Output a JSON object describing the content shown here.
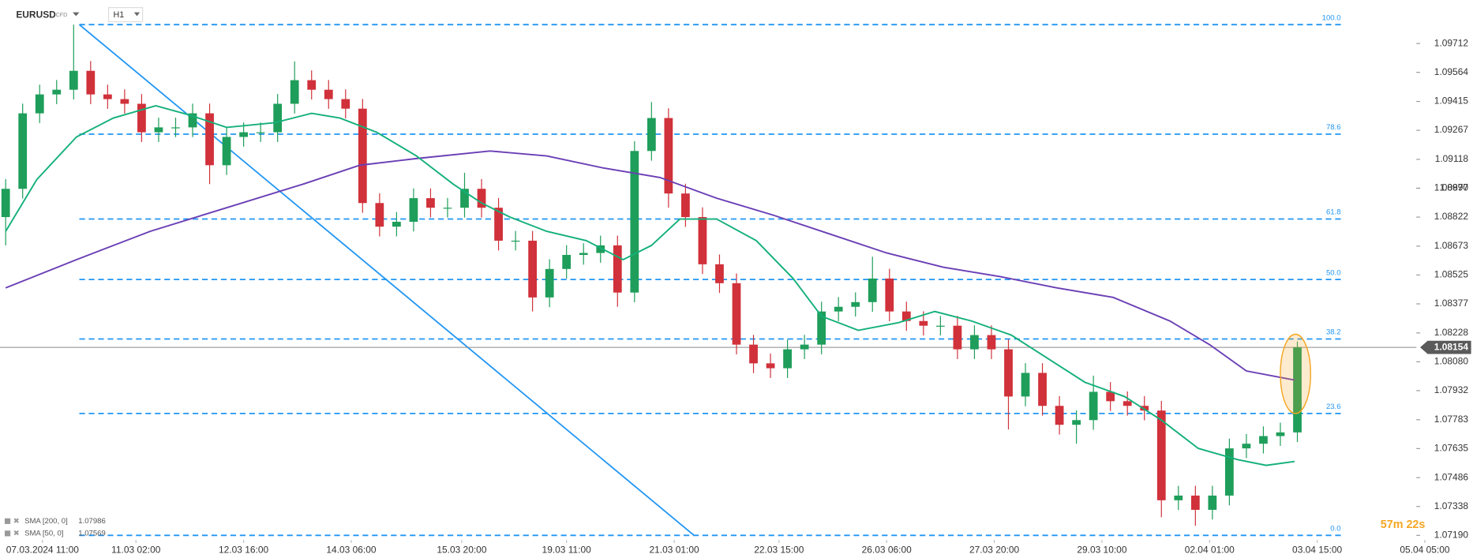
{
  "header": {
    "symbol": "EURUSD",
    "instrument": "CFD",
    "timeframe": "H1"
  },
  "chart_data": {
    "type": "candlestick",
    "x": [
      2,
      8,
      14,
      20,
      26,
      32,
      38,
      44,
      50,
      56,
      62,
      68,
      74,
      80,
      86,
      92,
      98,
      104,
      110,
      116,
      122,
      128,
      134,
      140,
      146,
      152,
      158,
      164,
      170,
      176,
      182,
      188,
      194,
      200,
      206,
      212,
      218,
      224,
      230,
      236,
      242,
      248,
      254,
      260,
      266,
      272,
      278,
      284,
      290,
      296,
      302,
      308,
      314,
      320,
      326,
      332,
      338,
      344,
      350,
      356,
      362,
      368,
      374,
      380,
      386,
      392,
      398,
      404,
      410,
      416,
      422,
      428,
      434,
      440,
      446,
      452,
      458
    ],
    "open": [
      1.08822,
      1.08967,
      1.09354,
      1.09451,
      1.09475,
      1.09572,
      1.09451,
      1.09427,
      1.09403,
      1.09257,
      1.09282,
      1.09282,
      1.09354,
      1.09088,
      1.09233,
      1.09257,
      1.09257,
      1.09403,
      1.09524,
      1.09475,
      1.09427,
      1.09378,
      1.08894,
      1.08773,
      1.08798,
      1.08919,
      1.0887,
      1.0887,
      1.08967,
      1.0887,
      1.08701,
      1.08701,
      1.0841,
      1.08556,
      1.08628,
      1.08638,
      1.08677,
      1.08435,
      1.09161,
      1.0933,
      1.08943,
      1.08822,
      1.0858,
      1.08483,
      1.08168,
      1.08072,
      1.08047,
      1.08144,
      1.08168,
      1.08338,
      1.08362,
      1.08386,
      1.08507,
      1.08338,
      1.08289,
      1.08265,
      1.08265,
      1.08144,
      1.08217,
      1.08144,
      1.07902,
      1.08023,
      1.07854,
      1.07757,
      1.07781,
      1.07926,
      1.07878,
      1.07854,
      1.0783,
      1.0737,
      1.07394,
      1.07321,
      1.07394,
      1.07636,
      1.0766,
      1.07699,
      1.07718
    ],
    "high": [
      1.09017,
      1.09404,
      1.09501,
      1.09525,
      1.09809,
      1.09622,
      1.09501,
      1.09477,
      1.09453,
      1.09332,
      1.09332,
      1.09404,
      1.09404,
      1.09283,
      1.09307,
      1.09307,
      1.09453,
      1.0962,
      1.09574,
      1.09525,
      1.09477,
      1.09428,
      1.08944,
      1.08848,
      1.08969,
      1.08969,
      1.0892,
      1.09049,
      1.09017,
      1.0892,
      1.08751,
      1.08751,
      1.08606,
      1.08678,
      1.08688,
      1.08727,
      1.08727,
      1.09211,
      1.09412,
      1.0938,
      1.08993,
      1.08872,
      1.0863,
      1.08533,
      1.08218,
      1.08122,
      1.08194,
      1.08218,
      1.08388,
      1.08412,
      1.08436,
      1.08619,
      1.08557,
      1.08388,
      1.08339,
      1.08315,
      1.08315,
      1.08267,
      1.08267,
      1.08194,
      1.08073,
      1.08073,
      1.07904,
      1.07831,
      1.08009,
      1.07976,
      1.07928,
      1.07904,
      1.0788,
      1.07444,
      1.07444,
      1.07444,
      1.07686,
      1.0771,
      1.07749,
      1.07768,
      1.08184
    ],
    "low": [
      1.08677,
      1.08917,
      1.09304,
      1.09401,
      1.09425,
      1.09401,
      1.09377,
      1.09353,
      1.09207,
      1.09207,
      1.09232,
      1.09232,
      1.08991,
      1.09038,
      1.09183,
      1.09207,
      1.09207,
      1.09353,
      1.09425,
      1.09377,
      1.09328,
      1.08844,
      1.08723,
      1.08723,
      1.08748,
      1.0882,
      1.0882,
      1.0882,
      1.0882,
      1.08651,
      1.08651,
      1.08338,
      1.0836,
      1.08506,
      1.08578,
      1.08588,
      1.08362,
      1.08385,
      1.09111,
      1.0887,
      1.08772,
      1.0853,
      1.08433,
      1.08118,
      1.08022,
      1.07997,
      1.07997,
      1.08094,
      1.08118,
      1.08288,
      1.08312,
      1.08336,
      1.08288,
      1.08239,
      1.08215,
      1.08215,
      1.08094,
      1.08094,
      1.08094,
      1.07733,
      1.07852,
      1.07804,
      1.07707,
      1.0766,
      1.07731,
      1.07828,
      1.07804,
      1.0778,
      1.07283,
      1.0732,
      1.07239,
      1.07271,
      1.07344,
      1.07586,
      1.0761,
      1.07649,
      1.07668
    ],
    "close": [
      1.08967,
      1.09354,
      1.09451,
      1.09475,
      1.09572,
      1.09451,
      1.09427,
      1.09403,
      1.09257,
      1.09282,
      1.09282,
      1.09354,
      1.09088,
      1.09233,
      1.09257,
      1.09257,
      1.09403,
      1.09524,
      1.09475,
      1.09427,
      1.09378,
      1.08894,
      1.08773,
      1.08798,
      1.08919,
      1.0887,
      1.0887,
      1.08967,
      1.0887,
      1.08701,
      1.08701,
      1.0841,
      1.08556,
      1.08628,
      1.08638,
      1.08677,
      1.08435,
      1.09161,
      1.0933,
      1.08943,
      1.08822,
      1.0858,
      1.08483,
      1.08168,
      1.08072,
      1.08047,
      1.08144,
      1.08168,
      1.08338,
      1.08362,
      1.08386,
      1.08507,
      1.08338,
      1.08289,
      1.08265,
      1.08265,
      1.08144,
      1.08217,
      1.08144,
      1.07902,
      1.08023,
      1.07854,
      1.07757,
      1.07781,
      1.07926,
      1.07878,
      1.07854,
      1.0783,
      1.0737,
      1.07394,
      1.07321,
      1.07394,
      1.07636,
      1.0766,
      1.07699,
      1.07718,
      1.08154
    ],
    "up_color": "#1e9e5a",
    "down_color": "#d0313a",
    "series": [
      {
        "name": "SMA [200, 0]",
        "color": "#6a3fb5",
        "legend_value": 1.07986,
        "x": [
          2,
          27,
          53,
          80,
          107,
          127,
          147,
          173,
          193,
          213,
          233,
          253,
          273,
          293,
          313,
          333,
          353,
          373,
          393,
          413,
          427,
          440,
          457
        ],
        "values": [
          1.08459,
          1.08604,
          1.08749,
          1.0887,
          1.08991,
          1.09088,
          1.09122,
          1.09161,
          1.09136,
          1.09074,
          1.09025,
          1.08919,
          1.08832,
          1.08735,
          1.08638,
          1.08565,
          1.08517,
          1.08459,
          1.0841,
          1.08289,
          1.08168,
          1.08033,
          1.07986
        ]
      },
      {
        "name": "SMA [50, 0]",
        "color": "#14b07a",
        "legend_value": 1.07569,
        "x": [
          2,
          13,
          27,
          40,
          55,
          67,
          80,
          97,
          110,
          120,
          133,
          147,
          160,
          170,
          180,
          193,
          207,
          220,
          230,
          240,
          253,
          267,
          280,
          290,
          303,
          317,
          330,
          343,
          357,
          370,
          383,
          397,
          410,
          423,
          437,
          447,
          457
        ],
        "values": [
          1.08749,
          1.09015,
          1.09233,
          1.0933,
          1.09393,
          1.09345,
          1.09282,
          1.09306,
          1.09354,
          1.0933,
          1.09257,
          1.09136,
          1.08991,
          1.08894,
          1.08822,
          1.08749,
          1.08701,
          1.08604,
          1.08677,
          1.08812,
          1.08812,
          1.08701,
          1.08507,
          1.08314,
          1.08241,
          1.0828,
          1.08338,
          1.08289,
          1.08217,
          1.08096,
          1.07975,
          1.07902,
          1.07781,
          1.07636,
          1.07578,
          1.07549,
          1.07569
        ]
      }
    ],
    "fib_color": "#2196f3",
    "fib_x": [
      28,
      474
    ],
    "fib_levels": [
      {
        "value": 1.09809,
        "label": "100.0"
      },
      {
        "value": 1.09247,
        "label": "78.6"
      },
      {
        "value": 1.08812,
        "label": "61.8"
      },
      {
        "value": 1.08502,
        "label": "50.0"
      },
      {
        "value": 1.08197,
        "label": "38.2"
      },
      {
        "value": 1.07815,
        "label": "23.6"
      },
      {
        "value": 1.0719,
        "label": "0.0"
      }
    ],
    "trendline": {
      "x": [
        28,
        245
      ],
      "y": [
        1.09809,
        1.0719
      ]
    },
    "current_price": 1.08154,
    "countdown": "57m 22s",
    "xlim": [
      0,
      520
    ],
    "ylim": [
      1.07137,
      1.09935
    ],
    "xticks": [
      {
        "value": 15,
        "label": "07.03.2024 11:00"
      },
      {
        "value": 48,
        "label": "11.03 02:00"
      },
      {
        "value": 86,
        "label": "12.03 16:00"
      },
      {
        "value": 124,
        "label": "14.03 06:00"
      },
      {
        "value": 163,
        "label": "15.03 20:00"
      },
      {
        "value": 200,
        "label": "19.03 11:00"
      },
      {
        "value": 238,
        "label": "21.03 01:00"
      },
      {
        "value": 275,
        "label": "22.03 15:00"
      },
      {
        "value": 313,
        "label": "26.03 06:00"
      },
      {
        "value": 351,
        "label": "27.03 20:00"
      },
      {
        "value": 389,
        "label": "29.03 10:00"
      },
      {
        "value": 427,
        "label": "02.04 01:00"
      },
      {
        "value": 465,
        "label": "03.04 15:00"
      },
      {
        "value": 503,
        "label": "05.04 05:00"
      }
    ],
    "yticks": [
      {
        "value": 1.0719,
        "label": "1.07190"
      },
      1.07338,
      1.07486,
      1.07635,
      1.07783,
      1.07932,
      {
        "value": 1.0808,
        "label": "1.08080"
      },
      1.08228,
      1.08377,
      1.08525,
      1.08673,
      1.08822,
      1.0897,
      {
        "value": 1.0897,
        "label": "1.08970"
      },
      1.09118,
      1.09267,
      1.09415,
      1.09564,
      1.09712
    ]
  }
}
